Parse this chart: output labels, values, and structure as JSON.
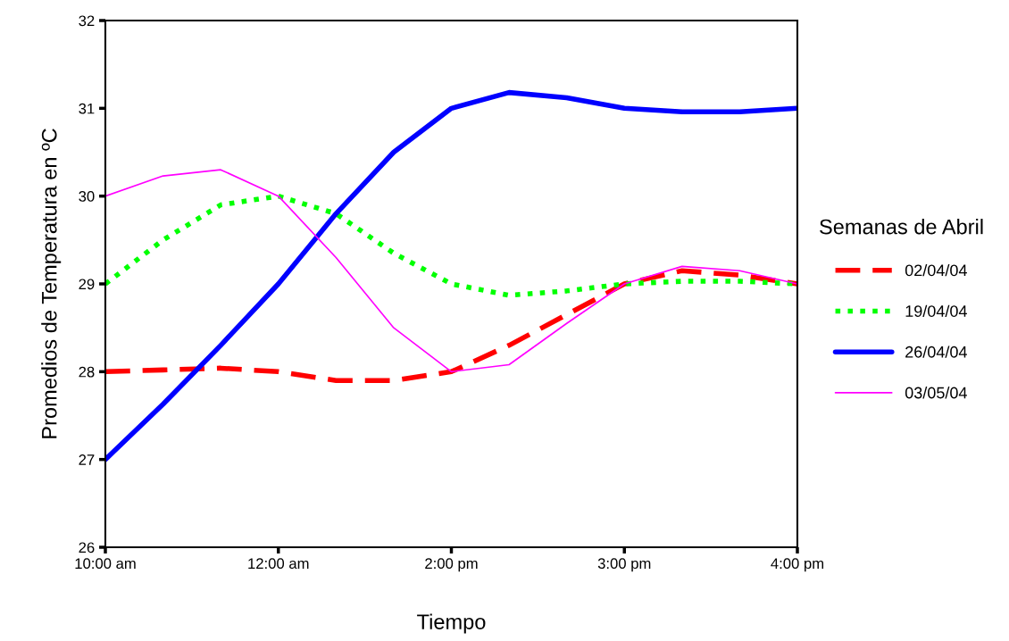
{
  "chart_data": {
    "type": "line",
    "xlabel": "Tiempo",
    "ylabel": "Promedios de Temperatura en ºC",
    "legend_title": "Semanas de Abril",
    "legend": "right",
    "categories": [
      "10:00 am",
      null,
      null,
      "12:00 am",
      null,
      null,
      "2:00 pm",
      null,
      null,
      "3:00 pm",
      null,
      null,
      "4:00 pm"
    ],
    "ylim": [
      26,
      32
    ],
    "yticks": [
      26,
      27,
      28,
      29,
      30,
      31,
      32
    ],
    "grid": false,
    "marker": "none",
    "series": [
      {
        "name": "02/04/04",
        "color": "#ff0000",
        "line_style": "dashed",
        "values": [
          28.0,
          28.02,
          28.04,
          28.0,
          27.9,
          27.9,
          28.0,
          28.3,
          28.65,
          29.0,
          29.15,
          29.1,
          29.0
        ]
      },
      {
        "name": "19/04/04",
        "color": "#00ff00",
        "line_style": "dotted",
        "values": [
          29.0,
          29.5,
          29.9,
          30.0,
          29.8,
          29.35,
          29.0,
          28.87,
          28.92,
          29.0,
          29.03,
          29.03,
          29.0
        ]
      },
      {
        "name": "26/04/04",
        "color": "#0000ff",
        "line_style": "solid",
        "values": [
          27.0,
          27.63,
          28.3,
          29.0,
          29.8,
          30.5,
          31.0,
          31.18,
          31.12,
          31.0,
          30.96,
          30.96,
          31.0
        ]
      },
      {
        "name": "03/05/04",
        "color": "#ff00ff",
        "line_style": "solid",
        "values": [
          30.0,
          30.23,
          30.3,
          30.0,
          29.3,
          28.5,
          28.0,
          28.08,
          28.55,
          29.0,
          29.2,
          29.15,
          29.0
        ]
      }
    ]
  }
}
